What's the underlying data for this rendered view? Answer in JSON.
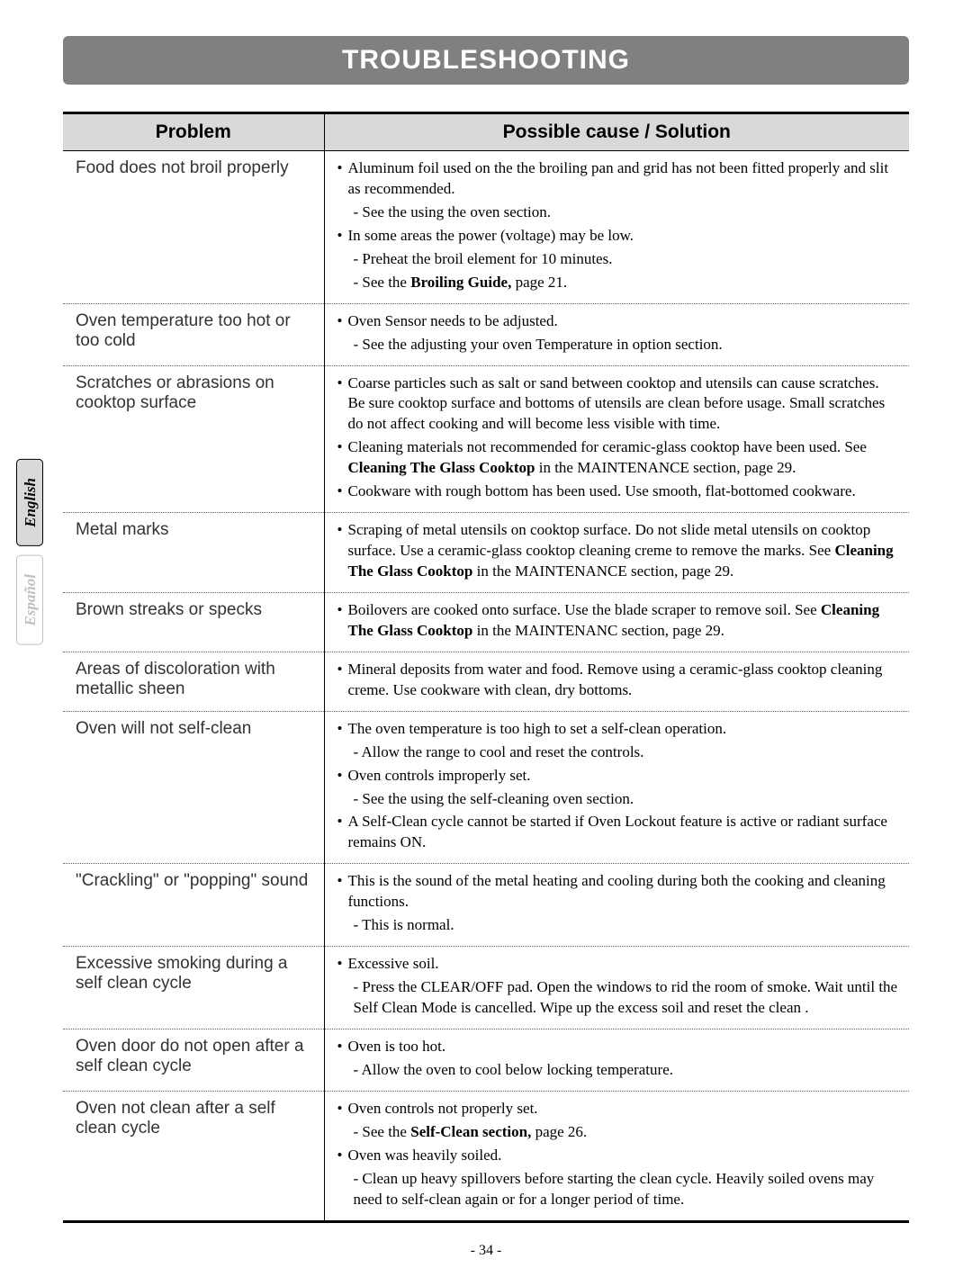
{
  "page_title": "TROUBLESHOOTING",
  "header_problem": "Problem",
  "header_solution": "Possible cause / Solution",
  "side_tabs": {
    "english": "English",
    "espanol": "Español"
  },
  "page_number": "- 34 -",
  "rows": [
    {
      "problem": "Food does not broil properly",
      "solutions": [
        {
          "bullet": "Aluminum foil used on the the broiling pan and grid has not been fitted properly and slit as recommended.",
          "subs": [
            "- See the using the oven section."
          ]
        },
        {
          "bullet": "In some areas the power (voltage) may be low.",
          "subs": [
            "- Preheat the broil element for 10 minutes.",
            "- See the <b>Broiling Guide,</b> page 21."
          ]
        }
      ]
    },
    {
      "problem": "Oven temperature too hot or too cold",
      "solutions": [
        {
          "bullet": "Oven Sensor needs to be adjusted.",
          "subs": [
            "- See the adjusting your oven Temperature in option section."
          ]
        }
      ]
    },
    {
      "problem": "Scratches or abrasions on cooktop surface",
      "solutions": [
        {
          "bullet": "Coarse particles such as salt or sand between cooktop and utensils can cause scratches. Be sure cooktop surface and bottoms of utensils are clean before usage. Small scratches do not affect cooking and will become less visible with time.",
          "subs": []
        },
        {
          "bullet": "Cleaning materials not recommended for ceramic-glass cooktop have been used. See <b>Cleaning The Glass Cooktop</b> in the MAINTENANCE section, page 29.",
          "subs": []
        },
        {
          "bullet": "Cookware with rough bottom has been used. Use smooth, flat-bottomed cookware.",
          "subs": []
        }
      ]
    },
    {
      "problem": "Metal marks",
      "solutions": [
        {
          "bullet": "Scraping of metal utensils on cooktop surface. Do not slide metal utensils on cooktop surface. Use a ceramic-glass cooktop cleaning creme to remove the marks. See <b>Cleaning The Glass Cooktop</b> in the MAINTENANCE section, page 29.",
          "subs": []
        }
      ]
    },
    {
      "problem": "Brown streaks or specks",
      "solutions": [
        {
          "bullet": "Boilovers are cooked onto surface. Use the blade scraper to remove soil. See <b>Cleaning The Glass Cooktop</b> in the MAINTENANC section, page 29.",
          "subs": []
        }
      ]
    },
    {
      "problem": "Areas of discoloration with metallic sheen",
      "solutions": [
        {
          "bullet": "Mineral deposits from water and food. Remove using a ceramic-glass cooktop cleaning creme. Use cookware with clean, dry bottoms.",
          "subs": []
        }
      ]
    },
    {
      "problem": "Oven will not self-clean",
      "solutions": [
        {
          "bullet": "The oven temperature is too high to set a self-clean operation.",
          "subs": [
            "- Allow the range to cool and reset the controls."
          ]
        },
        {
          "bullet": "Oven controls improperly set.",
          "subs": [
            "- See the using the self-cleaning oven section."
          ]
        },
        {
          "bullet": "A Self-Clean cycle cannot be started if Oven Lockout feature is active or radiant surface remains ON.",
          "subs": []
        }
      ]
    },
    {
      "problem": "\"Crackling\" or \"popping\" sound",
      "solutions": [
        {
          "bullet": "This is the sound of the metal heating and cooling during both the cooking and cleaning functions.",
          "subs": [
            "- This is normal."
          ]
        }
      ]
    },
    {
      "problem": "Excessive smoking during a self clean cycle",
      "solutions": [
        {
          "bullet": "Excessive soil.",
          "subs": [
            "- Press the CLEAR/OFF pad. Open the windows to rid the room of smoke. Wait until the Self Clean Mode is cancelled. Wipe up the excess soil and reset the clean ."
          ]
        }
      ]
    },
    {
      "problem": "Oven door do not open after a self clean cycle",
      "solutions": [
        {
          "bullet": "Oven is too hot.",
          "subs": [
            "- Allow the oven to cool below locking temperature."
          ]
        }
      ]
    },
    {
      "problem": "Oven not clean after a self clean cycle",
      "solutions": [
        {
          "bullet": "Oven controls not properly set.",
          "subs": [
            "- See the <b>Self-Clean section,</b> page 26."
          ]
        },
        {
          "bullet": "Oven was heavily soiled.",
          "subs": [
            "- Clean up heavy spillovers before starting the clean cycle. Heavily soiled ovens may need to self-clean again or for a longer period of time."
          ]
        }
      ]
    }
  ]
}
